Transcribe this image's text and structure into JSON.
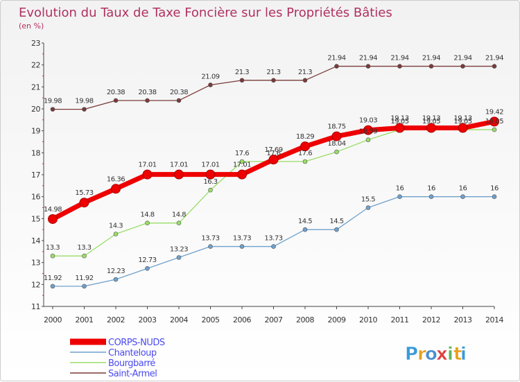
{
  "chart_data": {
    "type": "line",
    "title": "Evolution du Taux de Taxe Foncière sur les Propriétés Bâties",
    "subtitle": "(en %)",
    "xlabel": "",
    "ylabel": "",
    "x": [
      "2000",
      "2001",
      "2002",
      "2003",
      "2004",
      "2005",
      "2006",
      "2007",
      "2008",
      "2009",
      "2010",
      "2011",
      "2012",
      "2013",
      "2014"
    ],
    "ylim": [
      11,
      23
    ],
    "yticks": [
      "11",
      "12",
      "13",
      "14",
      "15",
      "16",
      "17",
      "18",
      "19",
      "20",
      "21",
      "22",
      "23"
    ],
    "grid": false,
    "legend_position": "bottom-left",
    "series": [
      {
        "name": "Saint-Armel",
        "color": "#7a3a3a",
        "values": [
          19.98,
          19.98,
          20.38,
          20.38,
          20.38,
          21.09,
          21.3,
          21.3,
          21.3,
          21.94,
          21.94,
          21.94,
          21.94,
          21.94,
          21.94
        ],
        "labels": [
          "19.98",
          "19.98",
          "20.38",
          "20.38",
          "20.38",
          "21.09",
          "21.3",
          "21.3",
          "21.3",
          "21.94",
          "21.94",
          "21.94",
          "21.94",
          "21.94",
          "21.94"
        ]
      },
      {
        "name": "Chanteloup",
        "color": "#6fa0cc",
        "values": [
          11.92,
          11.92,
          12.23,
          12.73,
          13.23,
          13.73,
          13.73,
          13.73,
          14.5,
          14.5,
          15.5,
          16,
          16,
          16,
          16
        ],
        "labels": [
          "11.92",
          "11.92",
          "12.23",
          "12.73",
          "13.23",
          "13.73",
          "13.73",
          "13.73",
          "14.5",
          "14.5",
          "15.5",
          "16",
          "16",
          "16",
          "16"
        ]
      },
      {
        "name": "Bourgbarré",
        "color": "#99dd66",
        "values": [
          13.3,
          13.3,
          14.3,
          14.8,
          14.8,
          16.3,
          17.6,
          17.6,
          17.6,
          18.04,
          18.59,
          19.05,
          19.05,
          19.05,
          19.05
        ],
        "labels": [
          "13.3",
          "13.3",
          "14.3",
          "14.8",
          "14.8",
          "16.3",
          "17.6",
          "17.6",
          "17.6",
          "18.04",
          "18.59",
          "19.05",
          "19.05",
          "19.05",
          "19.05"
        ]
      },
      {
        "name": "CORPS-NUDS",
        "color": "#ee0000",
        "values": [
          14.98,
          15.73,
          16.36,
          17.01,
          17.01,
          17.01,
          17.01,
          17.69,
          18.29,
          18.75,
          19.03,
          19.13,
          19.13,
          19.13,
          19.42
        ],
        "labels": [
          "14.98",
          "15.73",
          "16.36",
          "17.01",
          "17.01",
          "17.01",
          "17.01",
          "17.69",
          "18.29",
          "18.75",
          "19.03",
          "19.13",
          "19.13",
          "19.13",
          "19.42"
        ]
      }
    ],
    "legend": [
      "CORPS-NUDS",
      "Chanteloup",
      "Bourgbarré",
      "Saint-Armel"
    ]
  },
  "brand": {
    "letters": [
      "P",
      "r",
      "o",
      "x",
      "i",
      "t",
      "i"
    ],
    "colors": [
      "#3a9ad9",
      "#e8a020",
      "#4a8fd0",
      "#e04040",
      "#5cb85c",
      "#e8a020",
      "#3a9ad9"
    ]
  }
}
